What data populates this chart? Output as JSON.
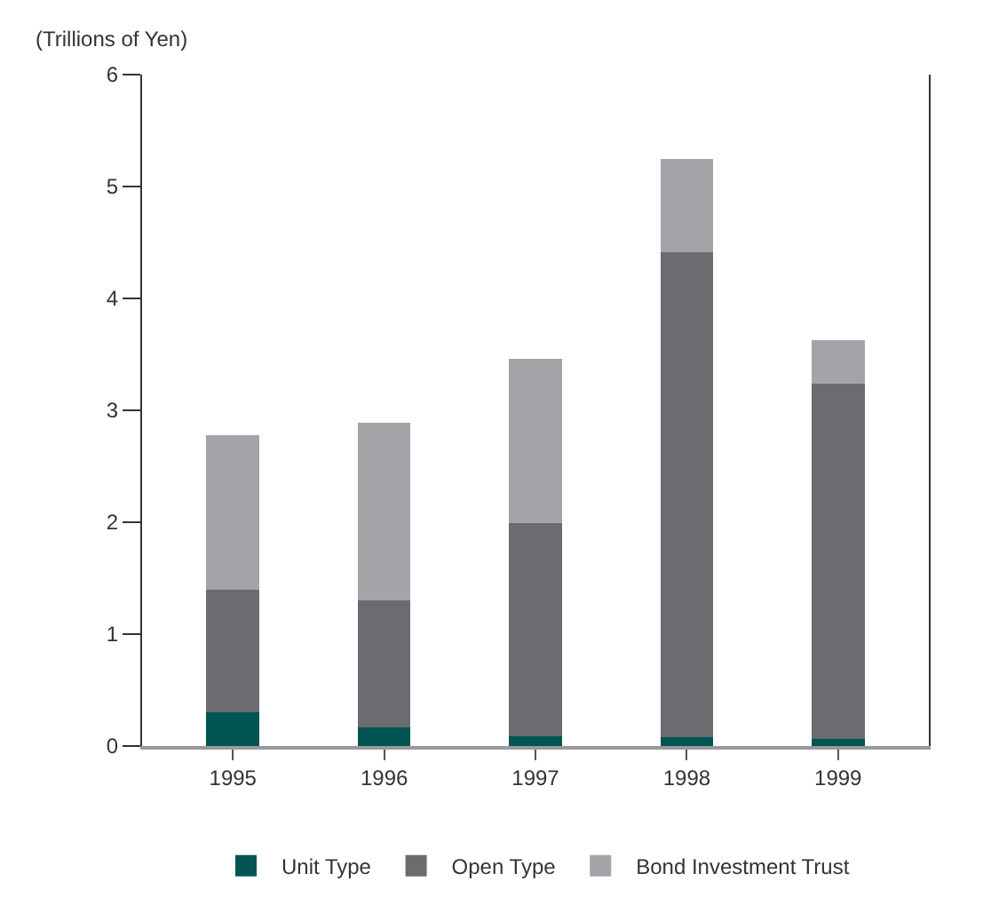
{
  "chart_data": {
    "type": "bar",
    "stacked": true,
    "ylabel": "(Trillions of Yen)",
    "categories": [
      "1995",
      "1996",
      "1997",
      "1998",
      "1999"
    ],
    "series": [
      {
        "name": "Unit Type",
        "color": "#005552",
        "values": [
          0.3,
          0.17,
          0.09,
          0.08,
          0.06
        ]
      },
      {
        "name": "Open Type",
        "color": "#6b6c70",
        "values": [
          1.1,
          1.13,
          1.9,
          4.33,
          3.18
        ]
      },
      {
        "name": "Bond Investment Trust",
        "color": "#a3a4a7",
        "values": [
          1.38,
          1.59,
          1.47,
          0.84,
          0.39
        ]
      }
    ],
    "ylim": [
      0,
      6
    ],
    "yticks": [
      0,
      1,
      2,
      3,
      4,
      5,
      6
    ],
    "legend": "bottom"
  }
}
